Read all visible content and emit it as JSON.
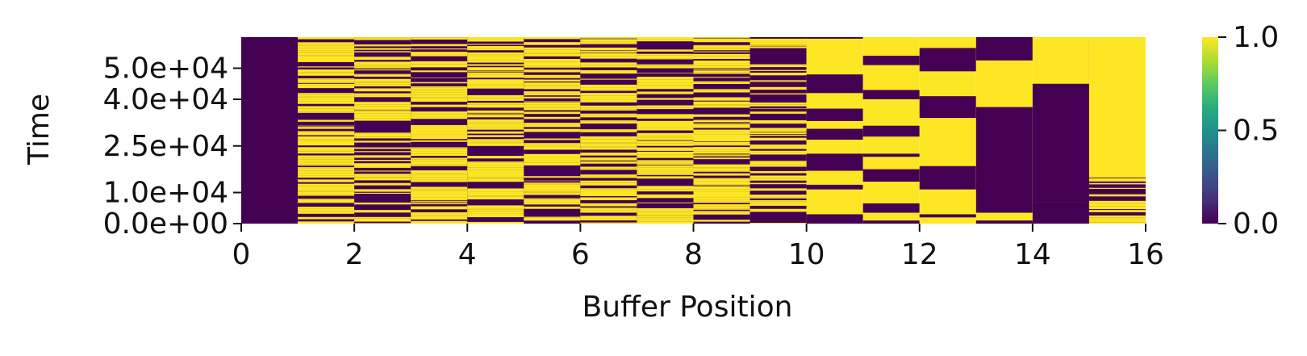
{
  "chart_data": {
    "type": "heatmap",
    "title": "",
    "xlabel": "Buffer Position",
    "ylabel": "Time",
    "xlim": [
      0,
      16
    ],
    "ylim": [
      0,
      60000
    ],
    "x_ticks": [
      "0",
      "2",
      "4",
      "6",
      "8",
      "10",
      "12",
      "14",
      "16"
    ],
    "y_ticks": [
      "0.0e+00",
      "1.0e+04",
      "2.5e+04",
      "4.0e+04",
      "5.0e+04"
    ],
    "y_tick_values": [
      0,
      10000,
      25000,
      40000,
      50000
    ],
    "colormap": "viridis",
    "colorbar": {
      "min": 0.0,
      "max": 1.0,
      "ticks": [
        "0.0",
        "0.5",
        "1.0"
      ]
    },
    "colors": {
      "low": "#440154",
      "mid": "#21918c",
      "high": "#fde725"
    },
    "columns": [
      {
        "position": 0,
        "pattern": "solid",
        "value": 0,
        "fraction_high": 0.0
      },
      {
        "position": 1,
        "pattern": "noise",
        "fraction_high": 0.7
      },
      {
        "position": 2,
        "pattern": "noise",
        "fraction_high": 0.55
      },
      {
        "position": 3,
        "pattern": "noise",
        "fraction_high": 0.65
      },
      {
        "position": 4,
        "pattern": "noise",
        "fraction_high": 0.6
      },
      {
        "position": 5,
        "pattern": "noise",
        "fraction_high": 0.6
      },
      {
        "position": 6,
        "pattern": "noise",
        "fraction_high": 0.55
      },
      {
        "position": 7,
        "pattern": "noise",
        "fraction_high": 0.6
      },
      {
        "position": 8,
        "pattern": "noise",
        "fraction_high": 0.65
      },
      {
        "position": 9,
        "pattern": "noise",
        "fraction_high": 0.5
      },
      {
        "position": 10,
        "pattern": "blocks",
        "low_intervals": [
          [
            0,
            3000
          ],
          [
            11000,
            12500
          ],
          [
            17000,
            22500
          ],
          [
            27000,
            30500
          ],
          [
            33000,
            37000
          ],
          [
            42000,
            48000
          ],
          [
            59500,
            60000
          ]
        ]
      },
      {
        "position": 11,
        "pattern": "blocks",
        "low_intervals": [
          [
            0,
            1000
          ],
          [
            3500,
            6500
          ],
          [
            13500,
            17500
          ],
          [
            21500,
            22500
          ],
          [
            28000,
            31500
          ],
          [
            40000,
            43000
          ],
          [
            51000,
            54000
          ]
        ]
      },
      {
        "position": 12,
        "pattern": "blocks",
        "low_intervals": [
          [
            2000,
            3000
          ],
          [
            11000,
            18500
          ],
          [
            34000,
            41000
          ],
          [
            49000,
            56500
          ]
        ]
      },
      {
        "position": 13,
        "pattern": "blocks",
        "low_intervals": [
          [
            0,
            1000
          ],
          [
            3500,
            37500
          ],
          [
            52500,
            60000
          ]
        ]
      },
      {
        "position": 14,
        "pattern": "blocks",
        "low_intervals": [
          [
            0,
            7000
          ],
          [
            7000,
            45000
          ]
        ]
      },
      {
        "position": 15,
        "pattern": "noise-bottom",
        "noise_until": 15000,
        "fraction_high": 0.55
      }
    ]
  }
}
